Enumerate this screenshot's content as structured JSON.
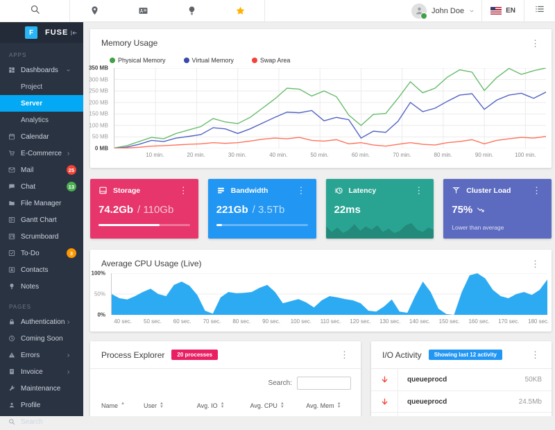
{
  "toolbar": {
    "shortcut_icons": [
      "location-pin",
      "contact-card",
      "lightbulb",
      "star"
    ],
    "user": {
      "name": "John Doe",
      "status": "online"
    },
    "language": {
      "code": "EN",
      "flag": "us"
    },
    "star_color": "#ffb300"
  },
  "sidebar": {
    "logo_letter": "F",
    "logo_text": "FUSE",
    "active_color": "#03a9f4",
    "sections": [
      {
        "label": "APPS",
        "items": [
          {
            "label": "Dashboards",
            "icon": "dashboard",
            "chevron": "down",
            "expanded": true,
            "children": [
              {
                "label": "Project",
                "active": false
              },
              {
                "label": "Server",
                "active": true
              },
              {
                "label": "Analytics",
                "active": false
              }
            ]
          },
          {
            "label": "Calendar",
            "icon": "calendar"
          },
          {
            "label": "E-Commerce",
            "icon": "cart",
            "chevron": "right"
          },
          {
            "label": "Mail",
            "icon": "mail",
            "badge": {
              "text": "25",
              "color": "#f44336"
            }
          },
          {
            "label": "Chat",
            "icon": "chat",
            "badge": {
              "text": "13",
              "color": "#4caf50"
            }
          },
          {
            "label": "File Manager",
            "icon": "folder"
          },
          {
            "label": "Gantt Chart",
            "icon": "gantt"
          },
          {
            "label": "Scrumboard",
            "icon": "board"
          },
          {
            "label": "To-Do",
            "icon": "check-box",
            "badge": {
              "text": "3",
              "color": "#ff9800"
            }
          },
          {
            "label": "Contacts",
            "icon": "contacts"
          },
          {
            "label": "Notes",
            "icon": "lightbulb"
          }
        ]
      },
      {
        "label": "PAGES",
        "items": [
          {
            "label": "Authentication",
            "icon": "lock",
            "chevron": "right"
          },
          {
            "label": "Coming Soon",
            "icon": "clock"
          },
          {
            "label": "Errors",
            "icon": "warning",
            "chevron": "right"
          },
          {
            "label": "Invoice",
            "icon": "receipt",
            "chevron": "right"
          },
          {
            "label": "Maintenance",
            "icon": "wrench"
          },
          {
            "label": "Profile",
            "icon": "person"
          },
          {
            "label": "Search",
            "icon": "search"
          }
        ]
      }
    ]
  },
  "memory_usage": {
    "title": "Memory Usage",
    "legend": [
      {
        "label": "Physical Memory",
        "color": "#43a047"
      },
      {
        "label": "Virtual Memory",
        "color": "#3949ab"
      },
      {
        "label": "Swap Area",
        "color": "#f44336"
      }
    ],
    "chart": {
      "type": "line",
      "ymax": 350,
      "yticks": [
        {
          "v": 0,
          "label": "0 MB",
          "strong": true
        },
        {
          "v": 50,
          "label": "50 MB"
        },
        {
          "v": 100,
          "label": "100 MB"
        },
        {
          "v": 150,
          "label": "150 MB"
        },
        {
          "v": 200,
          "label": "200 MB"
        },
        {
          "v": 250,
          "label": "250 MB"
        },
        {
          "v": 300,
          "label": "300 MB"
        },
        {
          "v": 350,
          "label": "350 MB",
          "strong": true
        }
      ],
      "xmin": 0,
      "xmax": 105,
      "grid_x": true,
      "xticks": [
        {
          "v": 10,
          "label": "10 min."
        },
        {
          "v": 20,
          "label": "20 min."
        },
        {
          "v": 30,
          "label": "30 min."
        },
        {
          "v": 40,
          "label": "40 min."
        },
        {
          "v": 50,
          "label": "50 min."
        },
        {
          "v": 60,
          "label": "60 min."
        },
        {
          "v": 70,
          "label": "70 min."
        },
        {
          "v": 80,
          "label": "80 min."
        },
        {
          "v": 90,
          "label": "90 min."
        },
        {
          "v": 100,
          "label": "100 min."
        }
      ],
      "series": [
        {
          "name": "Physical Memory",
          "color": "#66bb6a",
          "values": [
            2,
            12,
            30,
            48,
            42,
            65,
            80,
            95,
            130,
            115,
            108,
            135,
            175,
            215,
            262,
            258,
            228,
            250,
            225,
            145,
            100,
            148,
            152,
            218,
            290,
            242,
            262,
            310,
            342,
            332,
            252,
            308,
            348,
            322,
            338,
            350
          ]
        },
        {
          "name": "Virtual Memory",
          "color": "#5262c4",
          "values": [
            0,
            6,
            18,
            35,
            30,
            45,
            52,
            60,
            90,
            85,
            65,
            85,
            110,
            135,
            158,
            155,
            165,
            120,
            135,
            125,
            45,
            75,
            70,
            118,
            200,
            160,
            175,
            205,
            232,
            238,
            170,
            210,
            232,
            240,
            218,
            245
          ]
        },
        {
          "name": "Swap Area",
          "color": "#ff7058",
          "values": [
            0,
            2,
            5,
            10,
            12,
            15,
            18,
            20,
            25,
            22,
            25,
            32,
            40,
            45,
            42,
            48,
            35,
            32,
            38,
            20,
            25,
            15,
            10,
            18,
            25,
            18,
            15,
            25,
            30,
            38,
            20,
            35,
            42,
            48,
            45,
            52
          ]
        }
      ]
    }
  },
  "stat_cards": [
    {
      "title": "Storage",
      "icon": "hard-drive",
      "color": "#e6366b",
      "value": "74.2Gb",
      "total": " / 110Gb",
      "progress": 67
    },
    {
      "title": "Bandwidth",
      "icon": "layers",
      "color": "#2196f3",
      "value": "221Gb",
      "total": " / 3.5Tb",
      "progress": 6
    },
    {
      "title": "Latency",
      "icon": "timer",
      "color": "#2aa492",
      "value": "22ms",
      "spark_fill": "rgba(0,0,0,0.16)",
      "sparkline": [
        55,
        30,
        50,
        25,
        40,
        65,
        35,
        55,
        40,
        60,
        30,
        45,
        25,
        35,
        60,
        70,
        40,
        30,
        50,
        38
      ]
    },
    {
      "title": "Cluster Load",
      "icon": "cluster",
      "color": "#5c6bc0",
      "value": "75%",
      "trend": "down",
      "subtitle": "Lower than average"
    }
  ],
  "cpu_usage": {
    "title": "Average CPU Usage (Live)",
    "chart": {
      "type": "area",
      "ymax": 100,
      "yticks": [
        {
          "v": 0,
          "label": "0%",
          "strong": true
        },
        {
          "v": 50,
          "label": "50%"
        },
        {
          "v": 100,
          "label": "100%",
          "strong": true
        }
      ],
      "xmin": 36,
      "xmax": 183,
      "grid_x": false,
      "xticks": [
        {
          "v": 40,
          "label": "40 sec."
        },
        {
          "v": 50,
          "label": "50 sec."
        },
        {
          "v": 60,
          "label": "60 sec."
        },
        {
          "v": 70,
          "label": "70 sec."
        },
        {
          "v": 80,
          "label": "80 sec."
        },
        {
          "v": 90,
          "label": "90 sec."
        },
        {
          "v": 100,
          "label": "100 sec."
        },
        {
          "v": 110,
          "label": "110 sec."
        },
        {
          "v": 120,
          "label": "120 sec."
        },
        {
          "v": 130,
          "label": "130 sec."
        },
        {
          "v": 140,
          "label": "140 sec."
        },
        {
          "v": 150,
          "label": "150 sec."
        },
        {
          "v": 160,
          "label": "160 sec."
        },
        {
          "v": 170,
          "label": "170 sec."
        },
        {
          "v": 180,
          "label": "180 sec."
        }
      ],
      "series": [
        {
          "name": "CPU",
          "fill": "#2dabf2",
          "values": [
            50,
            40,
            37,
            45,
            55,
            63,
            50,
            45,
            72,
            80,
            70,
            48,
            10,
            3,
            42,
            55,
            52,
            53,
            55,
            65,
            72,
            55,
            28,
            33,
            38,
            30,
            18,
            35,
            45,
            42,
            38,
            35,
            28,
            10,
            8,
            20,
            37,
            8,
            5,
            45,
            80,
            55,
            15,
            2,
            0,
            55,
            95,
            100,
            88,
            60,
            45,
            40,
            50,
            55,
            48,
            60,
            85
          ]
        }
      ]
    }
  },
  "process_explorer": {
    "title": "Process Explorer",
    "badge": {
      "text": "20 processes",
      "color": "#e91e63"
    },
    "search_label": "Search:",
    "columns": [
      {
        "label": "Name",
        "sort": "asc"
      },
      {
        "label": "User",
        "sort": "both"
      },
      {
        "label": "Avg. IO",
        "sort": "both"
      },
      {
        "label": "Avg. CPU",
        "sort": "both"
      },
      {
        "label": "Avg. Mem",
        "sort": "both"
      }
    ]
  },
  "io_activity": {
    "title": "I/O Activity",
    "badge": {
      "text": "Showing last 12 activity",
      "color": "#2196f3"
    },
    "rows": [
      {
        "icon": "arrow-down",
        "name": "queueprocd",
        "value": "50KB"
      },
      {
        "icon": "arrow-down",
        "name": "queueprocd",
        "value": "24.5Mb"
      },
      {
        "icon": "arrow-down",
        "name": "",
        "value": ""
      }
    ]
  }
}
